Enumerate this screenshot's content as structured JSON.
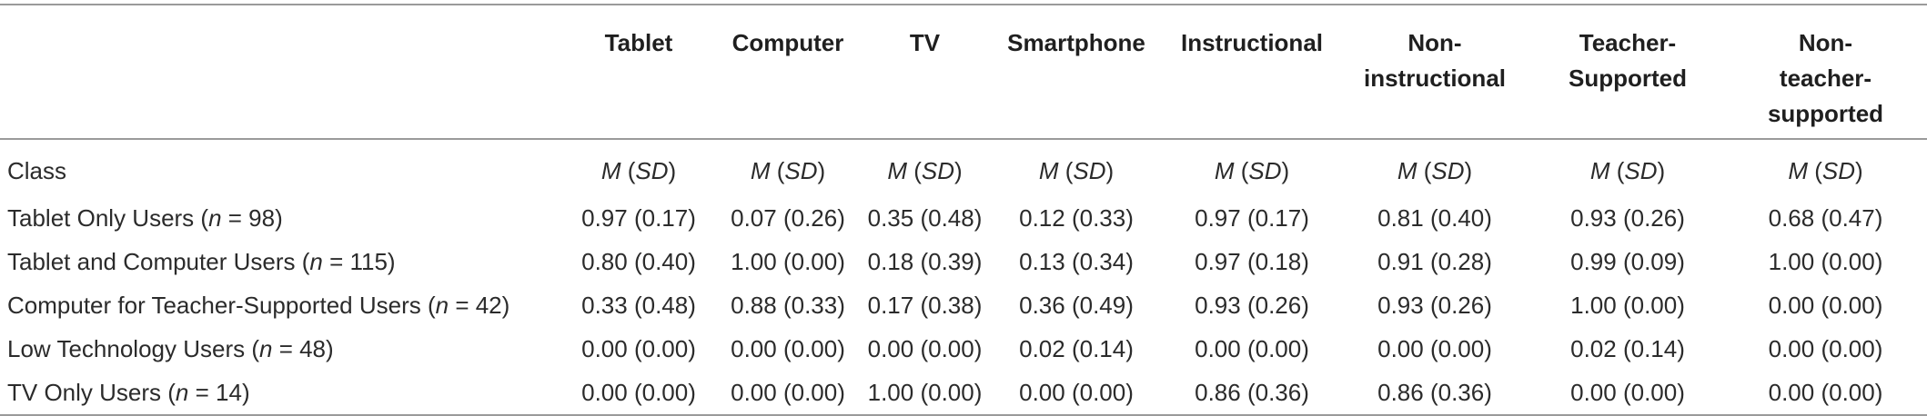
{
  "columns": [
    {
      "label": "Tablet"
    },
    {
      "label": "Computer"
    },
    {
      "label": "TV"
    },
    {
      "label": "Smartphone"
    },
    {
      "label": "Instructional"
    },
    {
      "label": "Non-instructional",
      "lines": [
        "Non-",
        "instructional"
      ]
    },
    {
      "label": "Teacher-Supported",
      "lines": [
        "Teacher-",
        "Supported"
      ]
    },
    {
      "label": "Non-teacher-supported",
      "lines": [
        "Non-",
        "teacher-",
        "supported"
      ]
    }
  ],
  "subheader": {
    "row_label": "Class",
    "stat_m": "M",
    "stat_sd": "SD"
  },
  "rows": [
    {
      "label_prefix": "Tablet Only Users (",
      "n_symbol": "n",
      "label_suffix": " = 98)",
      "values": [
        "0.97 (0.17)",
        "0.07 (0.26)",
        "0.35 (0.48)",
        "0.12 (0.33)",
        "0.97 (0.17)",
        "0.81 (0.40)",
        "0.93 (0.26)",
        "0.68 (0.47)"
      ]
    },
    {
      "label_prefix": "Tablet and Computer Users (",
      "n_symbol": "n",
      "label_suffix": " = 115)",
      "values": [
        "0.80 (0.40)",
        "1.00 (0.00)",
        "0.18 (0.39)",
        "0.13 (0.34)",
        "0.97 (0.18)",
        "0.91 (0.28)",
        "0.99 (0.09)",
        "1.00 (0.00)"
      ]
    },
    {
      "label_prefix": "Computer for Teacher-Supported Users (",
      "n_symbol": "n",
      "label_suffix": " = 42)",
      "values": [
        "0.33 (0.48)",
        "0.88 (0.33)",
        "0.17 (0.38)",
        "0.36 (0.49)",
        "0.93 (0.26)",
        "0.93 (0.26)",
        "1.00 (0.00)",
        "0.00 (0.00)"
      ]
    },
    {
      "label_prefix": "Low Technology Users (",
      "n_symbol": "n",
      "label_suffix": " = 48)",
      "values": [
        "0.00 (0.00)",
        "0.00 (0.00)",
        "0.00 (0.00)",
        "0.02 (0.14)",
        "0.00 (0.00)",
        "0.00 (0.00)",
        "0.02 (0.14)",
        "0.00 (0.00)"
      ]
    },
    {
      "label_prefix": "TV Only Users (",
      "n_symbol": "n",
      "label_suffix": " = 14)",
      "values": [
        "0.00 (0.00)",
        "0.00 (0.00)",
        "1.00 (0.00)",
        "0.00 (0.00)",
        "0.86 (0.36)",
        "0.86 (0.36)",
        "0.00 (0.00)",
        "0.00 (0.00)"
      ]
    }
  ]
}
